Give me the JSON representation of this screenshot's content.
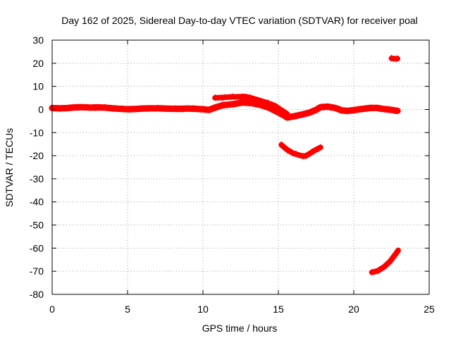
{
  "chart_data": {
    "type": "scatter",
    "title": "Day 162 of 2025, Sidereal Day-to-day VTEC variation (SDTVAR) for receiver poal",
    "xlabel": "GPS time / hours",
    "ylabel": "SDTVAR / TECUs",
    "xlim": [
      0,
      25
    ],
    "ylim": [
      -80,
      30
    ],
    "x_ticks": [
      0,
      5,
      10,
      15,
      20,
      25
    ],
    "y_ticks": [
      30,
      20,
      10,
      0,
      -10,
      -20,
      -30,
      -40,
      -50,
      -60,
      -70,
      -80
    ],
    "x_tick_labels": [
      "0",
      "5",
      "10",
      "15",
      "20",
      "25"
    ],
    "y_tick_labels": [
      "30",
      "20",
      "10",
      "0",
      "-10",
      "-20",
      "-30",
      "-40",
      "-50",
      "-60",
      "-70",
      "-80"
    ],
    "grid": true,
    "marker_color": "#ff0000",
    "series": [
      {
        "name": "main-track",
        "thickness": 1.4,
        "points": [
          [
            0,
            0.6
          ],
          [
            0.5,
            0.5
          ],
          [
            1,
            0.6
          ],
          [
            1.5,
            0.9
          ],
          [
            2,
            1.0
          ],
          [
            2.5,
            0.8
          ],
          [
            3,
            0.9
          ],
          [
            3.5,
            0.8
          ],
          [
            4,
            0.5
          ],
          [
            4.5,
            0.3
          ],
          [
            5,
            0.1
          ],
          [
            5.5,
            0.2
          ],
          [
            6,
            0.4
          ],
          [
            6.5,
            0.5
          ],
          [
            7,
            0.5
          ],
          [
            7.5,
            0.4
          ],
          [
            8,
            0.3
          ],
          [
            8.5,
            0.3
          ],
          [
            9,
            0.4
          ],
          [
            9.5,
            0.3
          ],
          [
            10,
            0.1
          ],
          [
            10.4,
            -0.2
          ],
          [
            10.8,
            0.8
          ],
          [
            11.3,
            1.8
          ],
          [
            12,
            2.3
          ],
          [
            12.6,
            3.0
          ],
          [
            13.2,
            2.8
          ],
          [
            13.8,
            2.0
          ],
          [
            14.3,
            1.0
          ],
          [
            14.8,
            -0.6
          ],
          [
            15.3,
            -2.3
          ],
          [
            15.6,
            -3.5
          ],
          [
            16,
            -3.0
          ],
          [
            16.5,
            -2.3
          ],
          [
            17,
            -1.5
          ],
          [
            17.5,
            -0.2
          ],
          [
            17.8,
            1.0
          ],
          [
            18.3,
            1.2
          ],
          [
            18.8,
            0.6
          ],
          [
            19.2,
            -0.4
          ],
          [
            19.6,
            -0.6
          ],
          [
            20,
            -0.3
          ],
          [
            20.5,
            0.2
          ],
          [
            21,
            0.6
          ],
          [
            21.5,
            0.7
          ],
          [
            22,
            0.2
          ],
          [
            22.5,
            -0.2
          ],
          [
            22.9,
            -0.6
          ]
        ]
      },
      {
        "name": "upper-segment",
        "thickness": 1.2,
        "points": [
          [
            10.8,
            5.0
          ],
          [
            11.3,
            5.2
          ],
          [
            11.8,
            5.4
          ],
          [
            12.3,
            5.5
          ],
          [
            12.8,
            5.6
          ],
          [
            13.3,
            4.8
          ],
          [
            13.8,
            3.8
          ],
          [
            14.3,
            2.8
          ],
          [
            14.8,
            1.5
          ],
          [
            15.2,
            -0.3
          ],
          [
            15.6,
            -2.0
          ]
        ]
      },
      {
        "name": "dip-arc",
        "thickness": 1.2,
        "points": [
          [
            15.2,
            -15.3
          ],
          [
            15.6,
            -17.5
          ],
          [
            16.0,
            -19.0
          ],
          [
            16.5,
            -20.0
          ],
          [
            16.8,
            -20.2
          ],
          [
            17.1,
            -19.0
          ],
          [
            17.5,
            -17.4
          ],
          [
            17.8,
            -16.4
          ]
        ]
      },
      {
        "name": "bottom-arc",
        "thickness": 1.2,
        "points": [
          [
            21.2,
            -70.5
          ],
          [
            21.6,
            -69.8
          ],
          [
            22.0,
            -68.2
          ],
          [
            22.4,
            -65.8
          ],
          [
            22.7,
            -63.2
          ],
          [
            22.95,
            -61.0
          ]
        ]
      },
      {
        "name": "top-spike",
        "thickness": 1.2,
        "points": [
          [
            22.5,
            22.1
          ],
          [
            22.7,
            22.0
          ],
          [
            22.9,
            22.0
          ]
        ]
      }
    ]
  }
}
